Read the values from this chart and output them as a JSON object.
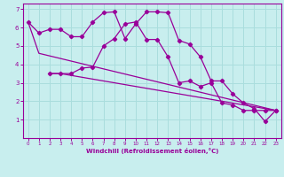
{
  "xlabel": "Windchill (Refroidissement éolien,°C)",
  "bg_color": "#c8eeee",
  "line_color": "#990099",
  "grid_color": "#aadddd",
  "xlim": [
    -0.5,
    23.5
  ],
  "ylim": [
    0,
    7.3
  ],
  "xticks": [
    0,
    1,
    2,
    3,
    4,
    5,
    6,
    7,
    8,
    9,
    10,
    11,
    12,
    13,
    14,
    15,
    16,
    17,
    18,
    19,
    20,
    21,
    22,
    23
  ],
  "yticks": [
    1,
    2,
    3,
    4,
    5,
    6,
    7
  ],
  "line1_x": [
    0,
    1,
    2,
    3,
    4,
    5,
    6,
    7,
    8,
    9,
    10,
    11,
    12,
    13,
    14,
    15,
    16,
    17,
    18,
    19,
    20,
    21,
    22,
    23
  ],
  "line1_y": [
    6.3,
    5.7,
    5.9,
    5.9,
    5.5,
    5.5,
    6.3,
    6.8,
    6.85,
    5.4,
    6.2,
    6.85,
    6.85,
    6.8,
    5.3,
    5.1,
    4.4,
    3.1,
    3.1,
    2.4,
    1.9,
    1.6,
    0.9,
    1.5
  ],
  "line2_x": [
    2,
    3,
    4,
    5,
    6,
    7,
    8,
    9,
    10,
    11,
    12,
    13,
    14,
    15,
    16,
    17,
    18,
    19,
    20,
    21,
    22,
    23
  ],
  "line2_y": [
    3.5,
    3.5,
    3.5,
    3.8,
    3.85,
    5.0,
    5.4,
    6.2,
    6.3,
    5.35,
    5.35,
    4.4,
    3.0,
    3.1,
    2.8,
    3.0,
    1.9,
    1.8,
    1.5,
    1.5,
    1.5,
    1.5
  ],
  "line3_x": [
    0,
    1,
    23
  ],
  "line3_y": [
    6.3,
    4.6,
    1.5
  ],
  "line4_x": [
    2,
    3,
    23
  ],
  "line4_y": [
    3.5,
    3.5,
    1.5
  ]
}
